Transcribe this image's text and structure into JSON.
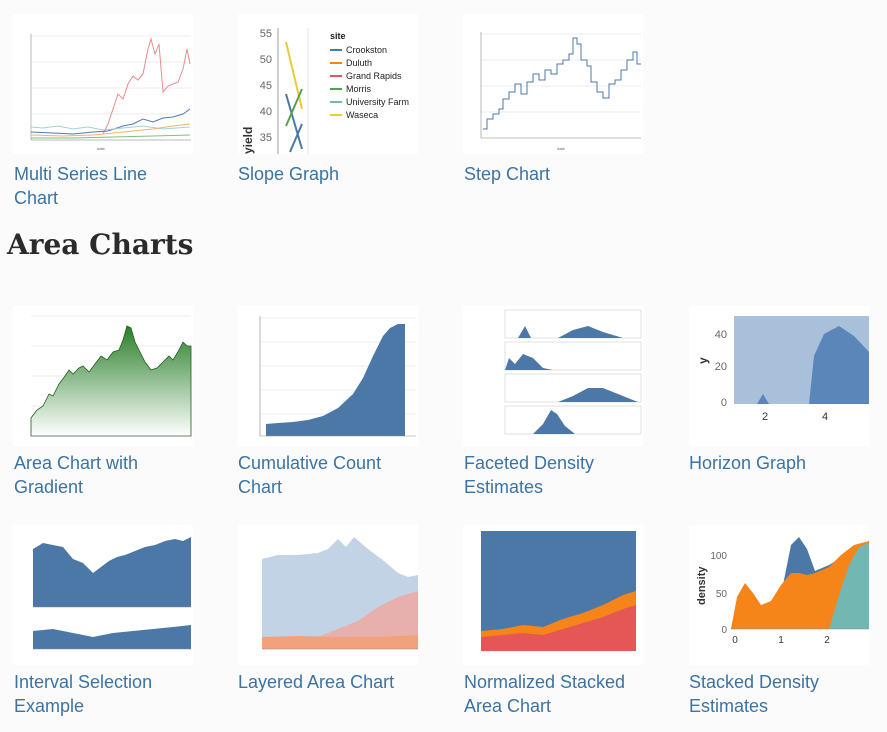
{
  "sections": [
    {
      "title": null,
      "items": [
        {
          "label": "Multi Series Line Chart"
        },
        {
          "label": "Slope Graph"
        },
        {
          "label": "Step Chart"
        }
      ]
    },
    {
      "title": "Area Charts",
      "items": [
        {
          "label": "Area Chart with Gradient"
        },
        {
          "label": "Cumulative Count Chart"
        },
        {
          "label": "Faceted Density Estimates"
        },
        {
          "label": "Horizon Graph"
        },
        {
          "label": "Interval Selection Example"
        },
        {
          "label": "Layered Area Chart"
        },
        {
          "label": "Normalized Stacked Area Chart"
        },
        {
          "label": "Stacked Density Estimates"
        }
      ]
    }
  ],
  "slope_graph": {
    "legend_title": "site",
    "sites": [
      "Crookston",
      "Duluth",
      "Grand Rapids",
      "Morris",
      "University Farm",
      "Waseca"
    ],
    "y_ticks": [
      "55",
      "50",
      "45",
      "40",
      "35"
    ],
    "y_label": "yield"
  },
  "horizon_graph": {
    "y_label": "y",
    "y_ticks": [
      "40",
      "20",
      "0"
    ],
    "x_ticks": [
      "2",
      "4"
    ]
  },
  "stacked_density": {
    "y_label": "density",
    "y_ticks": [
      "100",
      "50",
      "0"
    ],
    "x_ticks": [
      "0",
      "1",
      "2"
    ]
  },
  "colors": {
    "link": "#3b73a5",
    "blue": "#4c78a8",
    "orange": "#f58518",
    "red": "#e45756",
    "teal": "#72b7b2",
    "green": "#54a24b",
    "yellow": "#eeca3b"
  }
}
